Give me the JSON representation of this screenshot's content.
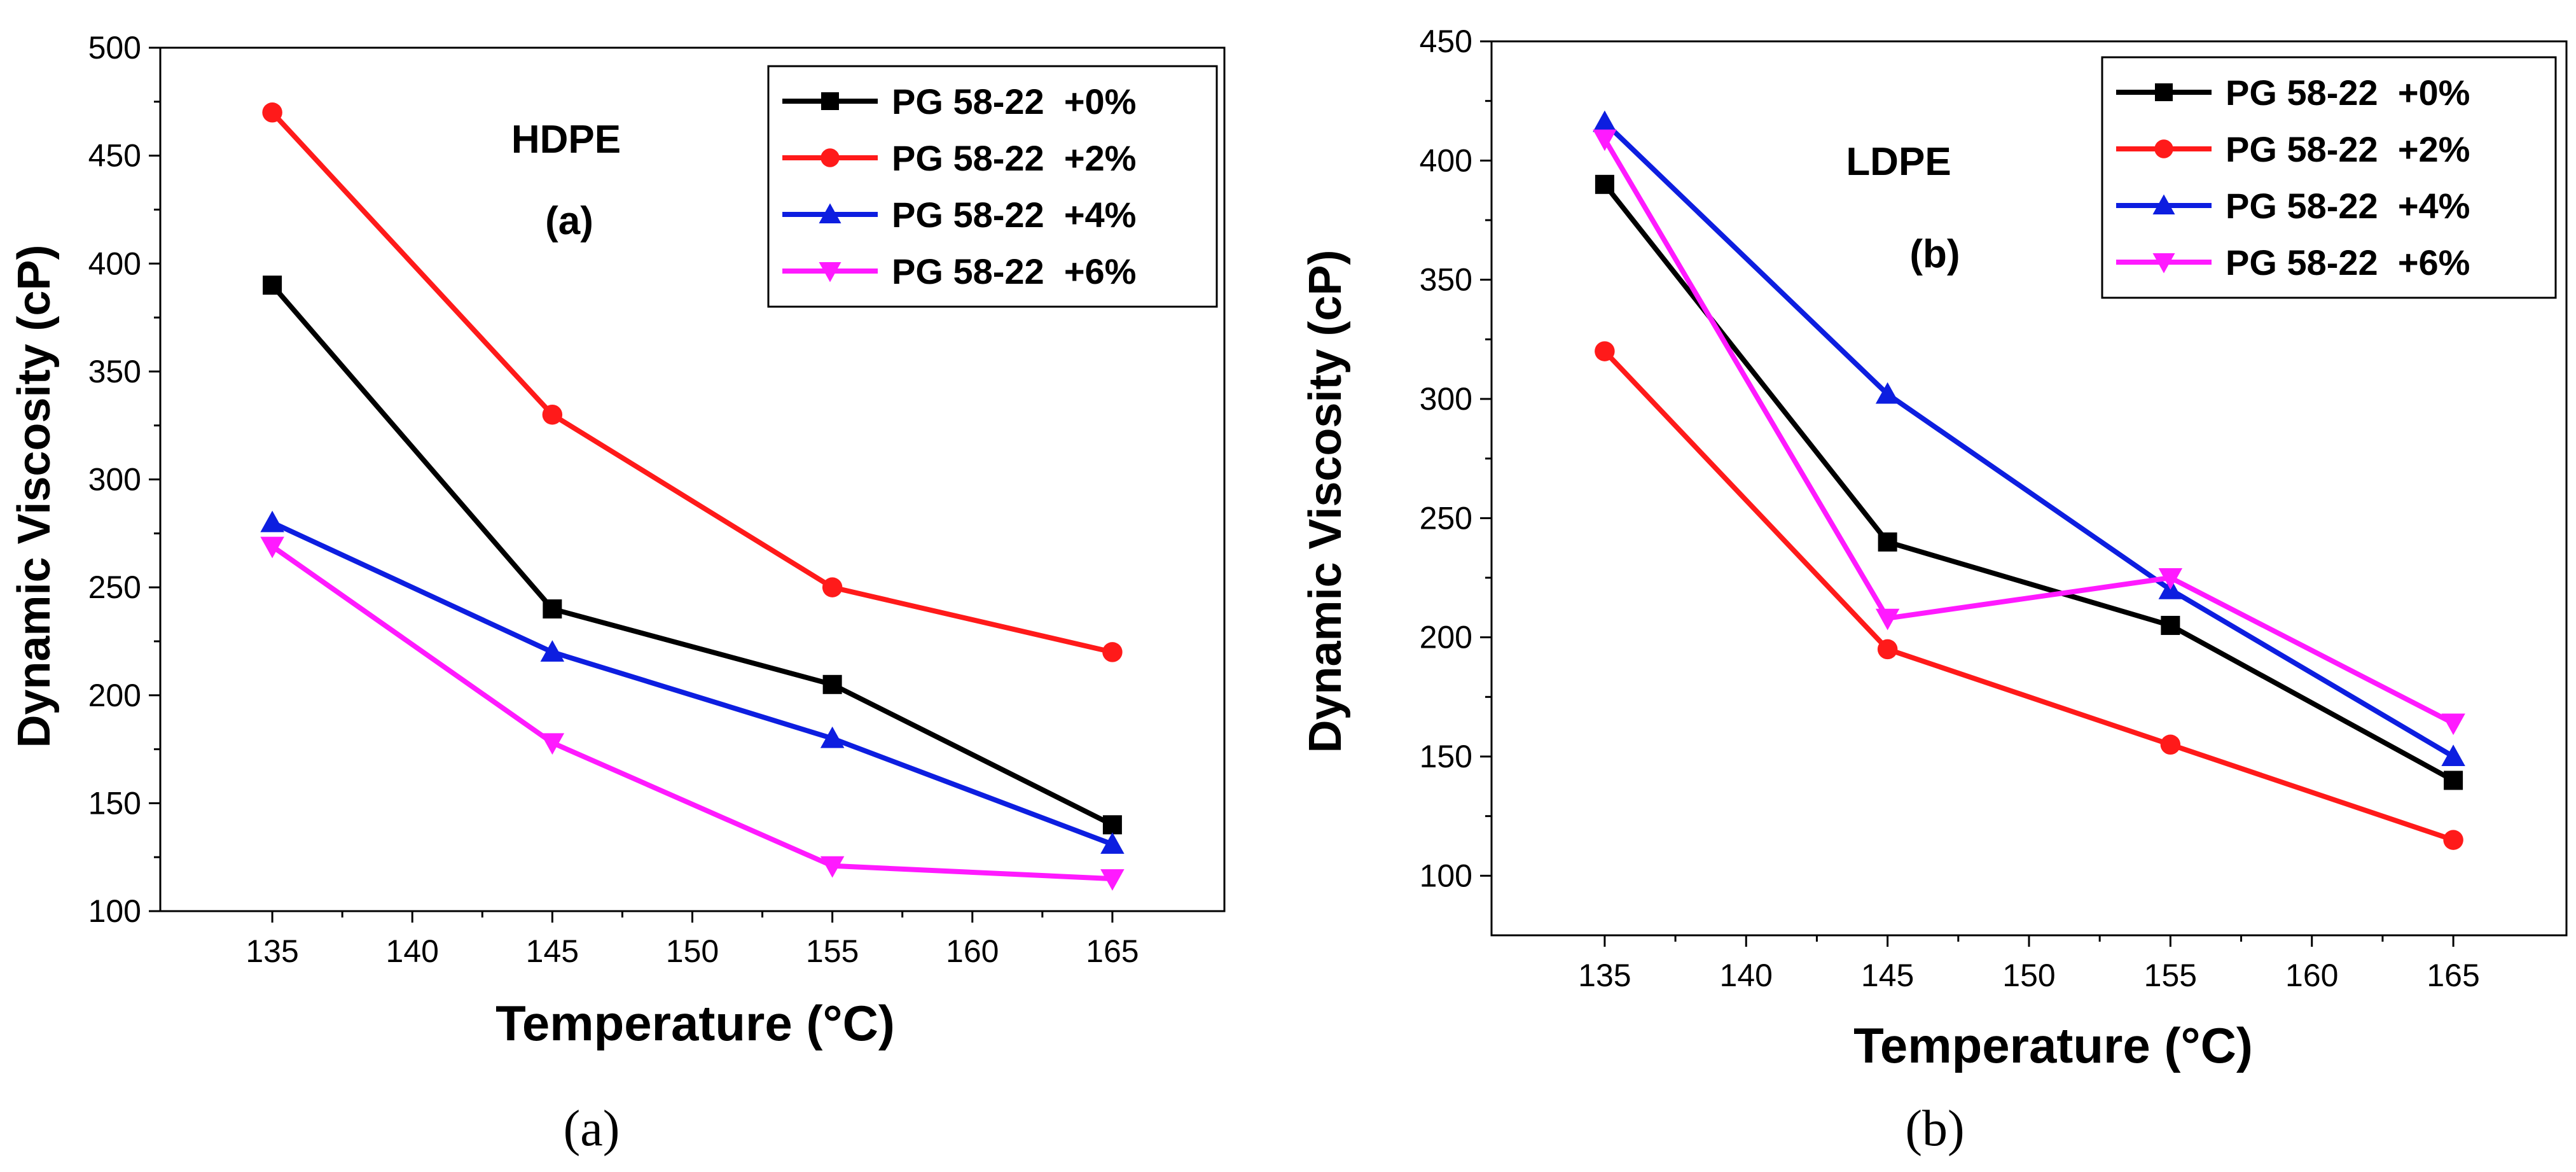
{
  "chart_data": [
    {
      "type": "line",
      "title": "HDPE",
      "subtitle": "(a)",
      "caption": "(a)",
      "xlabel": "Temperature (°C)",
      "ylabel": "Dynamic Viscosity (cP)",
      "x": [
        135,
        145,
        155,
        165
      ],
      "xlim": [
        131,
        169
      ],
      "ylim": [
        100,
        500
      ],
      "xticks": [
        135,
        140,
        145,
        150,
        155,
        160,
        165
      ],
      "yticks": [
        100,
        150,
        200,
        250,
        300,
        350,
        400,
        450,
        500
      ],
      "xtick_labels": [
        "135",
        "140",
        "145",
        "150",
        "155",
        "160",
        "165"
      ],
      "ytick_labels": [
        "100",
        "150",
        "200",
        "250",
        "300",
        "350",
        "400",
        "450",
        "500"
      ],
      "grid": false,
      "legend_position": "top-right",
      "series": [
        {
          "name": "PG 58-22  +0%",
          "color": "#000000",
          "marker": "square",
          "values": [
            390,
            240,
            205,
            140
          ]
        },
        {
          "name": "PG 58-22  +2%",
          "color": "#ff1a1a",
          "marker": "circle",
          "values": [
            470,
            330,
            250,
            220
          ]
        },
        {
          "name": "PG 58-22  +4%",
          "color": "#0d1ee0",
          "marker": "triangle-up",
          "values": [
            280,
            220,
            180,
            131
          ]
        },
        {
          "name": "PG 58-22  +6%",
          "color": "#ff1aff",
          "marker": "triangle-down",
          "values": [
            269,
            178,
            121,
            115
          ]
        }
      ]
    },
    {
      "type": "line",
      "title": "LDPE",
      "subtitle": "(b)",
      "caption": "(b)",
      "xlabel": "Temperature (°C)",
      "ylabel": "Dynamic Viscosity (cP)",
      "x": [
        135,
        145,
        155,
        165
      ],
      "xlim": [
        131,
        169
      ],
      "ylim": [
        75,
        450
      ],
      "xticks": [
        135,
        140,
        145,
        150,
        155,
        160,
        165
      ],
      "yticks": [
        100,
        150,
        200,
        250,
        300,
        350,
        400,
        450
      ],
      "xtick_labels": [
        "135",
        "140",
        "145",
        "150",
        "155",
        "160",
        "165"
      ],
      "ytick_labels": [
        "100",
        "150",
        "200",
        "250",
        "300",
        "350",
        "400",
        "450"
      ],
      "grid": false,
      "legend_position": "top-right",
      "series": [
        {
          "name": "PG 58-22  +0%",
          "color": "#000000",
          "marker": "square",
          "values": [
            390,
            240,
            205,
            140
          ]
        },
        {
          "name": "PG 58-22  +2%",
          "color": "#ff1a1a",
          "marker": "circle",
          "values": [
            320,
            195,
            155,
            115
          ]
        },
        {
          "name": "PG 58-22  +4%",
          "color": "#0d1ee0",
          "marker": "triangle-up",
          "values": [
            416,
            302,
            220,
            150
          ]
        },
        {
          "name": "PG 58-22  +6%",
          "color": "#ff1aff",
          "marker": "triangle-down",
          "values": [
            409,
            208,
            225,
            164
          ]
        }
      ]
    }
  ]
}
